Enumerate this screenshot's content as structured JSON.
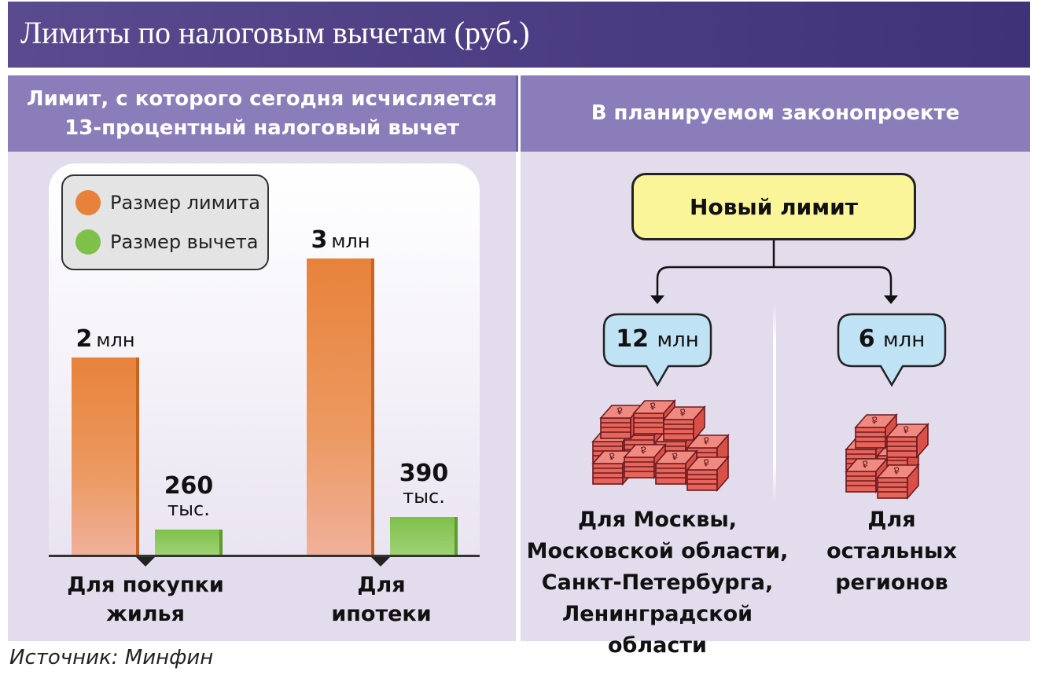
{
  "title": "Лимиты по налоговым вычетам (руб.)",
  "left_panel": {
    "header_line1": "Лимит, с которого сегодня исчисляется",
    "header_line2": "13-процентный налоговый вычет"
  },
  "right_panel": {
    "header": "В планируемом законопроекте",
    "new_limit": "Новый лимит",
    "branches": [
      {
        "value": "12",
        "unit": "млн",
        "region_lines": [
          "Для Москвы,",
          "Московской области,",
          "Санкт-Петербурга,",
          "Ленинградской области"
        ]
      },
      {
        "value": "6",
        "unit": "млн",
        "region_lines": [
          "Для остальных",
          "регионов"
        ]
      }
    ]
  },
  "source": "Источник: Минфин",
  "colors": {
    "limit": "#e8823a",
    "deduction": "#7ec04a",
    "title_bg": "#4a3c82",
    "header_bg": "#8a7dba",
    "panel_bg": "#e2dcec",
    "new_limit_bg": "#fbf59a",
    "bubble_bg": "#bfe3f5",
    "money": "#c0404a"
  },
  "chart_data": {
    "type": "bar",
    "categories": [
      "Для покупки жилья",
      "Для ипотеки"
    ],
    "category_lines": [
      [
        "Для покупки",
        "жилья"
      ],
      [
        "Для",
        "ипотеки"
      ]
    ],
    "series": [
      {
        "name": "Размер лимита",
        "values": [
          2000000,
          3000000
        ],
        "labels": [
          [
            "2",
            "млн"
          ],
          [
            "3",
            "млн"
          ]
        ]
      },
      {
        "name": "Размер вычета",
        "values": [
          260000,
          390000
        ],
        "labels": [
          [
            "260",
            "тыс."
          ],
          [
            "390",
            "тыс."
          ]
        ]
      }
    ],
    "ylim": [
      0,
      3000000
    ],
    "legend_position": "top-left"
  }
}
